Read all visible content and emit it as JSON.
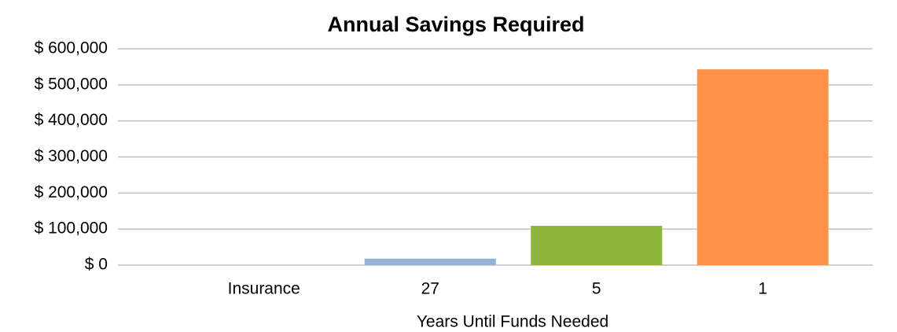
{
  "chart_data": {
    "type": "bar",
    "title": "Annual Savings Required",
    "x_label": "Years Until Funds Needed",
    "categories": [
      "Insurance",
      "27",
      "5",
      "1"
    ],
    "values": [
      0,
      18000,
      109000,
      543000
    ],
    "colors": [
      "#95b3d7",
      "#95b3d7",
      "#8db53c",
      "#ff9248"
    ],
    "ylim": [
      0,
      600000
    ],
    "yticks": [
      {
        "value": 0,
        "label": "$ 0"
      },
      {
        "value": 100000,
        "label": "$ 100,000"
      },
      {
        "value": 200000,
        "label": "$ 200,000"
      },
      {
        "value": 300000,
        "label": "$ 300,000"
      },
      {
        "value": 400000,
        "label": "$ 400,000"
      },
      {
        "value": 500000,
        "label": "$ 500,000"
      },
      {
        "value": 600000,
        "label": "$ 600,000"
      }
    ],
    "grid": true
  }
}
